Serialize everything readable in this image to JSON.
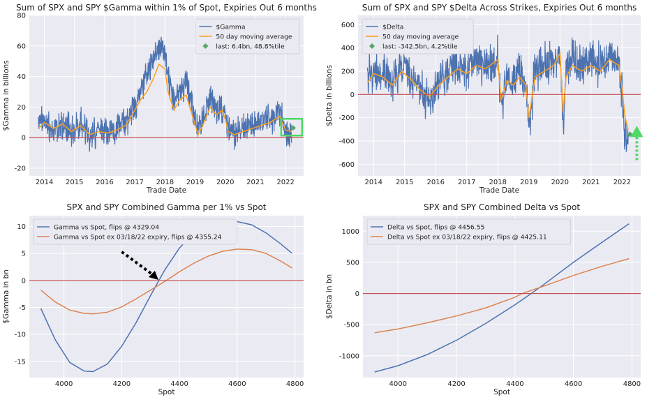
{
  "chart_data": [
    {
      "type": "line",
      "title": "Sum of SPX and SPY $Gamma within 1% of Spot, Expiries Out 6 months",
      "xlabel": "Trade Date",
      "ylabel": "$Gamma in billions",
      "xlim": [
        2013.5,
        2022.6
      ],
      "ylim": [
        -25,
        80
      ],
      "xticks": [
        2014,
        2015,
        2016,
        2017,
        2018,
        2019,
        2020,
        2021,
        2022
      ],
      "xtick_labels": [
        "2014",
        "2015",
        "2016",
        "2017",
        "2018",
        "2019",
        "2020",
        "2021",
        "2022"
      ],
      "yticks": [
        -20,
        0,
        20,
        40,
        60,
        80
      ],
      "grid": true,
      "legend_position": "top-right",
      "hline": 0,
      "series": [
        {
          "name": "$Gamma",
          "color": "#4c72b0",
          "x": [
            2013.8,
            2014.0,
            2014.3,
            2014.6,
            2014.9,
            2015.2,
            2015.5,
            2015.8,
            2016.1,
            2016.4,
            2016.7,
            2017.0,
            2017.2,
            2017.4,
            2017.6,
            2017.8,
            2018.0,
            2018.1,
            2018.3,
            2018.5,
            2018.7,
            2018.9,
            2019.1,
            2019.3,
            2019.5,
            2019.7,
            2019.9,
            2020.0,
            2020.1,
            2020.3,
            2020.6,
            2020.9,
            2021.2,
            2021.5,
            2021.8,
            2022.0,
            2022.2
          ],
          "y": [
            8,
            12,
            6,
            10,
            4,
            9,
            2,
            5,
            4,
            6,
            10,
            20,
            30,
            42,
            52,
            60,
            55,
            38,
            25,
            30,
            35,
            22,
            5,
            15,
            25,
            18,
            20,
            16,
            6,
            2,
            5,
            8,
            10,
            12,
            18,
            4,
            2
          ],
          "spread": 9
        },
        {
          "name": "50 day moving average",
          "color": "#ff9f1a",
          "x": [
            2013.8,
            2014.0,
            2014.3,
            2014.6,
            2014.9,
            2015.2,
            2015.5,
            2015.8,
            2016.1,
            2016.4,
            2016.7,
            2017.0,
            2017.2,
            2017.4,
            2017.6,
            2017.8,
            2018.0,
            2018.1,
            2018.3,
            2018.5,
            2018.7,
            2018.9,
            2019.1,
            2019.3,
            2019.5,
            2019.7,
            2019.9,
            2020.0,
            2020.1,
            2020.3,
            2020.6,
            2020.9,
            2021.2,
            2021.5,
            2021.8,
            2022.0,
            2022.2
          ],
          "y": [
            6,
            10,
            6,
            9,
            4,
            8,
            2,
            4,
            3,
            5,
            8,
            18,
            25,
            30,
            38,
            48,
            45,
            30,
            18,
            25,
            28,
            15,
            2,
            10,
            20,
            15,
            18,
            12,
            4,
            2,
            4,
            6,
            8,
            10,
            14,
            5,
            4
          ]
        },
        {
          "name": "last: 6.4bn, 48.8%tile",
          "color": "#55a868",
          "marker": "diamond",
          "x": [
            2022.25
          ],
          "y": [
            6.4
          ]
        }
      ]
    },
    {
      "type": "line",
      "title": "Sum of SPX and SPY $Delta Across Strikes, Expiries Out 6 months",
      "xlabel": "Trade Date",
      "ylabel": "$Delta in billions",
      "xlim": [
        2013.5,
        2022.6
      ],
      "ylim": [
        -700,
        680
      ],
      "xticks": [
        2014,
        2015,
        2016,
        2017,
        2018,
        2019,
        2020,
        2021,
        2022
      ],
      "xtick_labels": [
        "2014",
        "2015",
        "2016",
        "2017",
        "2018",
        "2019",
        "2020",
        "2021",
        "2022"
      ],
      "yticks": [
        -600,
        -400,
        -200,
        0,
        200,
        400,
        600
      ],
      "grid": true,
      "legend_position": "top-left",
      "hline": 0,
      "series": [
        {
          "name": "$Delta",
          "color": "#4c72b0",
          "x": [
            2013.8,
            2014.0,
            2014.3,
            2014.6,
            2014.9,
            2015.2,
            2015.5,
            2015.8,
            2016.1,
            2016.4,
            2016.7,
            2017.0,
            2017.3,
            2017.6,
            2017.9,
            2018.0,
            2018.1,
            2018.3,
            2018.5,
            2018.7,
            2018.9,
            2019.0,
            2019.2,
            2019.5,
            2019.8,
            2020.0,
            2020.1,
            2020.2,
            2020.4,
            2020.7,
            2021.0,
            2021.3,
            2021.6,
            2021.9,
            2022.0,
            2022.1,
            2022.2
          ],
          "y": [
            150,
            200,
            180,
            100,
            250,
            150,
            50,
            -50,
            100,
            200,
            250,
            200,
            300,
            250,
            300,
            350,
            -100,
            150,
            100,
            200,
            100,
            -250,
            200,
            250,
            300,
            350,
            -250,
            200,
            300,
            250,
            300,
            250,
            350,
            300,
            0,
            -400,
            -350
          ],
          "spread": 160
        },
        {
          "name": "50 day moving average",
          "color": "#ff9f1a",
          "x": [
            2013.8,
            2014.0,
            2014.3,
            2014.6,
            2014.9,
            2015.2,
            2015.5,
            2015.8,
            2016.1,
            2016.4,
            2016.7,
            2017.0,
            2017.3,
            2017.6,
            2017.9,
            2018.0,
            2018.1,
            2018.3,
            2018.5,
            2018.7,
            2018.9,
            2019.0,
            2019.2,
            2019.5,
            2019.8,
            2020.0,
            2020.1,
            2020.2,
            2020.4,
            2020.7,
            2021.0,
            2021.3,
            2021.6,
            2021.9,
            2022.0,
            2022.1,
            2022.2
          ],
          "y": [
            100,
            180,
            150,
            80,
            200,
            130,
            40,
            -20,
            80,
            150,
            220,
            180,
            250,
            220,
            280,
            300,
            -50,
            120,
            80,
            150,
            80,
            -200,
            150,
            200,
            250,
            350,
            -150,
            150,
            250,
            200,
            250,
            200,
            300,
            250,
            50,
            -200,
            -300
          ]
        },
        {
          "name": "last: -342.5bn, 4.2%tile",
          "color": "#55a868",
          "marker": "diamond",
          "x": [
            2022.25
          ],
          "y": [
            -342.5
          ]
        }
      ]
    },
    {
      "type": "line",
      "title": "SPX and SPY Combined Gamma per 1% vs Spot",
      "xlabel": "Spot",
      "ylabel": "$Gamma in bn",
      "xlim": [
        3880,
        4830
      ],
      "ylim": [
        -18,
        12
      ],
      "xticks": [
        4000,
        4200,
        4400,
        4600,
        4800
      ],
      "xtick_labels": [
        "4000",
        "4200",
        "4400",
        "4600",
        "4800"
      ],
      "yticks": [
        -15,
        -10,
        -5,
        0,
        5,
        10
      ],
      "grid": true,
      "legend_position": "top-left",
      "hline": 0,
      "series": [
        {
          "name": "Gamma vs Spot, flips @ 4329.04",
          "color": "#4c72b0",
          "x": [
            3920,
            3970,
            4020,
            4070,
            4100,
            4150,
            4200,
            4250,
            4300,
            4329,
            4350,
            4400,
            4450,
            4500,
            4550,
            4600,
            4650,
            4700,
            4750,
            4790
          ],
          "y": [
            -5.2,
            -11.0,
            -15.2,
            -16.8,
            -16.9,
            -15.5,
            -12.2,
            -7.8,
            -2.8,
            0.0,
            2.0,
            6.0,
            8.8,
            10.3,
            10.9,
            10.9,
            10.3,
            8.8,
            6.8,
            5.0
          ]
        },
        {
          "name": "Gamma vs Spot ex 03/18/22 expiry, flips @ 4355.24",
          "color": "#dd8452",
          "x": [
            3920,
            3970,
            4020,
            4070,
            4100,
            4150,
            4200,
            4250,
            4300,
            4355,
            4400,
            4450,
            4500,
            4550,
            4600,
            4650,
            4700,
            4750,
            4790
          ],
          "y": [
            -1.8,
            -4.0,
            -5.5,
            -6.1,
            -6.2,
            -5.9,
            -4.9,
            -3.4,
            -1.8,
            0.0,
            1.6,
            3.2,
            4.5,
            5.4,
            5.8,
            5.7,
            5.0,
            3.6,
            2.3
          ]
        }
      ],
      "annotations": [
        {
          "type": "dotted-arrow",
          "color": "#000000",
          "from": [
            4200,
            5.3
          ],
          "to": [
            4327,
            0.1
          ]
        }
      ]
    },
    {
      "type": "line",
      "title": "SPX and SPY Combined Delta vs Spot",
      "xlabel": "Spot",
      "ylabel": "$Delta in bn",
      "xlim": [
        3880,
        4830
      ],
      "ylim": [
        -1350,
        1250
      ],
      "xticks": [
        4000,
        4200,
        4400,
        4600,
        4800
      ],
      "xtick_labels": [
        "4000",
        "4200",
        "4400",
        "4600",
        "4800"
      ],
      "yticks": [
        -1000,
        -500,
        0,
        500,
        1000
      ],
      "grid": true,
      "legend_position": "top-left",
      "hline": 0,
      "series": [
        {
          "name": "Delta vs Spot, flips @ 4456.55",
          "color": "#4c72b0",
          "x": [
            3920,
            4000,
            4100,
            4200,
            4300,
            4400,
            4456,
            4500,
            4600,
            4700,
            4790
          ],
          "y": [
            -1260,
            -1160,
            -980,
            -750,
            -480,
            -180,
            0,
            150,
            500,
            830,
            1120
          ]
        },
        {
          "name": "Delta vs Spot ex 03/18/22 expiry, flips @ 4425.11",
          "color": "#dd8452",
          "x": [
            3920,
            4000,
            4100,
            4200,
            4300,
            4400,
            4425,
            4500,
            4600,
            4700,
            4790
          ],
          "y": [
            -630,
            -570,
            -470,
            -360,
            -230,
            -60,
            0,
            120,
            290,
            440,
            560
          ]
        }
      ]
    }
  ]
}
